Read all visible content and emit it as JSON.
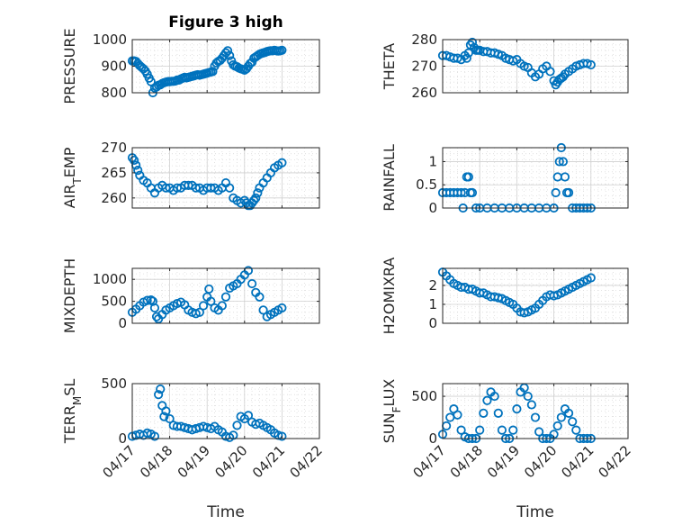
{
  "title": "Figure 3 high",
  "xlabel": "Time",
  "x_ticks": [
    "04/17",
    "04/18",
    "04/19",
    "04/20",
    "04/21",
    "04/22"
  ],
  "marker_color": "#0072BD",
  "chart_data": [
    {
      "type": "scatter",
      "ylabel": "PRESSURE",
      "ylim": [
        800,
        1000
      ],
      "yticks": [
        800,
        900,
        1000
      ],
      "grid": true,
      "x_unit": "days since 04/17",
      "x": [
        0,
        0.05,
        0.1,
        0.15,
        0.2,
        0.25,
        0.3,
        0.35,
        0.4,
        0.45,
        0.5,
        0.55,
        0.6,
        0.65,
        0.7,
        0.75,
        0.8,
        0.85,
        0.9,
        0.95,
        1,
        1.05,
        1.1,
        1.15,
        1.2,
        1.25,
        1.3,
        1.35,
        1.4,
        1.45,
        1.5,
        1.55,
        1.6,
        1.65,
        1.7,
        1.75,
        1.8,
        1.85,
        1.9,
        1.95,
        2,
        2.05,
        2.1,
        2.15,
        2.2,
        2.25,
        2.3,
        2.35,
        2.4,
        2.45,
        2.5,
        2.55,
        2.6,
        2.65,
        2.7,
        2.75,
        2.8,
        2.85,
        2.9,
        2.95,
        3,
        3.05,
        3.1,
        3.15,
        3.2,
        3.25,
        3.3,
        3.35,
        3.4,
        3.45,
        3.5,
        3.55,
        3.6,
        3.65,
        3.7,
        3.75,
        3.8,
        3.85,
        3.9,
        3.95,
        4
      ],
      "values": [
        920,
        920,
        918,
        910,
        902,
        896,
        890,
        882,
        870,
        855,
        842,
        800,
        818,
        822,
        828,
        830,
        835,
        838,
        840,
        842,
        842,
        843,
        843,
        844,
        848,
        848,
        852,
        855,
        858,
        856,
        858,
        860,
        862,
        864,
        866,
        868,
        866,
        868,
        870,
        872,
        874,
        876,
        878,
        880,
        900,
        912,
        918,
        922,
        930,
        940,
        950,
        958,
        940,
        920,
        905,
        900,
        898,
        893,
        890,
        888,
        885,
        890,
        900,
        910,
        915,
        930,
        935,
        940,
        945,
        948,
        950,
        952,
        955,
        957,
        958,
        958,
        960,
        958,
        957,
        958,
        960
      ]
    },
    {
      "type": "scatter",
      "ylabel": "THETA",
      "ylim": [
        260,
        280
      ],
      "yticks": [
        260,
        270,
        280
      ],
      "grid": true,
      "x_unit": "days since 04/17",
      "x": [
        0,
        0.1,
        0.2,
        0.3,
        0.4,
        0.5,
        0.6,
        0.65,
        0.7,
        0.75,
        0.8,
        0.85,
        0.9,
        0.95,
        1,
        1.1,
        1.2,
        1.3,
        1.4,
        1.5,
        1.6,
        1.7,
        1.8,
        1.9,
        2,
        2.1,
        2.2,
        2.3,
        2.4,
        2.5,
        2.6,
        2.7,
        2.8,
        2.9,
        3,
        3.05,
        3.1,
        3.15,
        3.2,
        3.25,
        3.3,
        3.4,
        3.5,
        3.6,
        3.7,
        3.8,
        3.9,
        4
      ],
      "values": [
        274,
        274,
        273.5,
        273,
        273,
        272.5,
        274,
        273,
        275,
        278,
        279,
        277,
        276,
        276,
        276,
        275.5,
        275.5,
        275,
        275,
        274.5,
        274,
        273,
        272.5,
        272,
        272.5,
        271,
        270,
        269.5,
        267.5,
        266,
        267,
        269,
        270,
        268,
        264.5,
        263,
        264,
        265,
        265.5,
        266,
        267,
        268,
        269,
        270,
        270.5,
        271,
        271,
        270.5
      ]
    },
    {
      "type": "scatter",
      "ylabel": "AIR_TEMP",
      "ylim": [
        258,
        270
      ],
      "yticks": [
        260,
        265,
        270
      ],
      "grid": true,
      "x_unit": "days since 04/17",
      "x": [
        0,
        0.05,
        0.1,
        0.15,
        0.2,
        0.3,
        0.4,
        0.5,
        0.6,
        0.7,
        0.8,
        0.9,
        1,
        1.1,
        1.2,
        1.3,
        1.4,
        1.5,
        1.6,
        1.7,
        1.8,
        1.9,
        2,
        2.1,
        2.2,
        2.3,
        2.4,
        2.5,
        2.6,
        2.7,
        2.8,
        2.9,
        3,
        3.05,
        3.1,
        3.15,
        3.2,
        3.25,
        3.3,
        3.35,
        3.4,
        3.5,
        3.6,
        3.7,
        3.8,
        3.9,
        4
      ],
      "values": [
        268,
        267.5,
        266.5,
        265.5,
        264.5,
        263.5,
        263,
        262,
        261,
        262,
        262.5,
        262,
        262,
        261.5,
        262,
        262,
        262.5,
        262.5,
        262.5,
        262,
        262,
        261.5,
        262,
        262,
        262,
        261.5,
        262,
        263,
        262,
        260,
        259.5,
        259,
        259.5,
        259,
        258.5,
        258.5,
        259,
        259.5,
        260,
        261,
        262,
        263,
        264,
        265,
        266,
        266.5,
        267
      ]
    },
    {
      "type": "scatter",
      "ylabel": "RAINFALL",
      "ylim": [
        0,
        1.3
      ],
      "yticks": [
        0,
        0.5,
        1
      ],
      "grid": true,
      "x_unit": "days since 04/17",
      "x": [
        0,
        0.1,
        0.2,
        0.3,
        0.4,
        0.5,
        0.55,
        0.6,
        0.65,
        0.7,
        0.75,
        0.8,
        0.9,
        1,
        1.2,
        1.4,
        1.6,
        1.8,
        2,
        2.2,
        2.4,
        2.6,
        2.8,
        3,
        3.05,
        3.1,
        3.15,
        3.2,
        3.25,
        3.3,
        3.35,
        3.4,
        3.5,
        3.6,
        3.7,
        3.8,
        3.9,
        4
      ],
      "values": [
        0.33,
        0.33,
        0.33,
        0.33,
        0.33,
        0.33,
        0,
        0.33,
        0.67,
        0.67,
        0.33,
        0.33,
        0,
        0,
        0,
        0,
        0,
        0,
        0,
        0,
        0,
        0,
        0,
        0,
        0.33,
        0.67,
        1,
        1.3,
        1,
        0.67,
        0.33,
        0.33,
        0,
        0,
        0,
        0,
        0,
        0
      ]
    },
    {
      "type": "scatter",
      "ylabel": "MIXDEPTH",
      "ylim": [
        0,
        1250
      ],
      "yticks": [
        0,
        500,
        1000
      ],
      "grid": true,
      "x_unit": "days since 04/17",
      "x": [
        0,
        0.1,
        0.2,
        0.3,
        0.4,
        0.5,
        0.55,
        0.6,
        0.65,
        0.7,
        0.8,
        0.9,
        1,
        1.1,
        1.2,
        1.3,
        1.4,
        1.5,
        1.6,
        1.7,
        1.8,
        1.9,
        2,
        2.05,
        2.1,
        2.2,
        2.3,
        2.4,
        2.5,
        2.6,
        2.7,
        2.8,
        2.9,
        3,
        3.1,
        3.2,
        3.3,
        3.4,
        3.5,
        3.6,
        3.7,
        3.8,
        3.9,
        4
      ],
      "values": [
        250,
        320,
        400,
        480,
        520,
        530,
        500,
        350,
        150,
        100,
        200,
        300,
        350,
        400,
        450,
        480,
        420,
        300,
        250,
        220,
        250,
        400,
        600,
        780,
        500,
        350,
        300,
        400,
        600,
        800,
        850,
        900,
        1000,
        1100,
        1200,
        900,
        700,
        600,
        300,
        150,
        200,
        250,
        300,
        350
      ]
    },
    {
      "type": "scatter",
      "ylabel": "H2OMIXRA",
      "ylim": [
        0,
        2.9
      ],
      "yticks": [
        0,
        1,
        2
      ],
      "grid": true,
      "x_unit": "days since 04/17",
      "x": [
        0,
        0.1,
        0.2,
        0.3,
        0.4,
        0.5,
        0.6,
        0.7,
        0.8,
        0.9,
        1,
        1.1,
        1.2,
        1.3,
        1.4,
        1.5,
        1.6,
        1.7,
        1.8,
        1.9,
        2,
        2.1,
        2.2,
        2.3,
        2.4,
        2.5,
        2.6,
        2.7,
        2.8,
        2.9,
        3,
        3.1,
        3.2,
        3.3,
        3.4,
        3.5,
        3.6,
        3.7,
        3.8,
        3.9,
        4
      ],
      "values": [
        2.7,
        2.5,
        2.3,
        2.1,
        2,
        1.9,
        1.9,
        1.8,
        1.8,
        1.7,
        1.6,
        1.6,
        1.5,
        1.4,
        1.4,
        1.35,
        1.3,
        1.2,
        1.1,
        1,
        0.8,
        0.6,
        0.55,
        0.6,
        0.7,
        0.8,
        1,
        1.2,
        1.4,
        1.5,
        1.45,
        1.5,
        1.6,
        1.7,
        1.8,
        1.9,
        2,
        2.1,
        2.2,
        2.3,
        2.4
      ]
    },
    {
      "type": "scatter",
      "ylabel": "TERR_MSL",
      "ylim": [
        0,
        500
      ],
      "yticks": [
        0,
        500
      ],
      "grid": true,
      "x_unit": "days since 04/17",
      "x": [
        0,
        0.1,
        0.2,
        0.3,
        0.4,
        0.5,
        0.6,
        0.7,
        0.75,
        0.8,
        0.85,
        0.9,
        1,
        1.1,
        1.2,
        1.3,
        1.4,
        1.5,
        1.6,
        1.7,
        1.8,
        1.9,
        2,
        2.1,
        2.2,
        2.3,
        2.4,
        2.5,
        2.6,
        2.7,
        2.8,
        2.9,
        3,
        3.1,
        3.2,
        3.3,
        3.4,
        3.5,
        3.6,
        3.7,
        3.8,
        3.9,
        4
      ],
      "values": [
        20,
        30,
        40,
        30,
        50,
        40,
        20,
        400,
        450,
        300,
        200,
        250,
        180,
        120,
        110,
        110,
        100,
        90,
        80,
        90,
        100,
        110,
        100,
        90,
        110,
        80,
        60,
        20,
        10,
        30,
        120,
        200,
        180,
        210,
        150,
        130,
        140,
        120,
        100,
        80,
        50,
        30,
        20
      ]
    },
    {
      "type": "scatter",
      "ylabel": "SUN_FLUX",
      "ylim": [
        0,
        650
      ],
      "yticks": [
        0,
        500
      ],
      "grid": true,
      "x_unit": "days since 04/17",
      "x": [
        0,
        0.1,
        0.2,
        0.3,
        0.4,
        0.5,
        0.6,
        0.7,
        0.8,
        0.9,
        1,
        1.1,
        1.2,
        1.3,
        1.4,
        1.5,
        1.6,
        1.7,
        1.8,
        1.9,
        2,
        2.1,
        2.2,
        2.3,
        2.4,
        2.5,
        2.6,
        2.7,
        2.8,
        2.9,
        3,
        3.1,
        3.2,
        3.3,
        3.4,
        3.5,
        3.6,
        3.7,
        3.8,
        3.9,
        4
      ],
      "values": [
        50,
        150,
        250,
        350,
        280,
        100,
        20,
        0,
        0,
        0,
        100,
        300,
        450,
        550,
        500,
        300,
        100,
        0,
        0,
        100,
        350,
        550,
        600,
        500,
        400,
        250,
        80,
        0,
        0,
        0,
        50,
        150,
        250,
        350,
        300,
        200,
        100,
        0,
        0,
        0,
        0
      ]
    }
  ]
}
